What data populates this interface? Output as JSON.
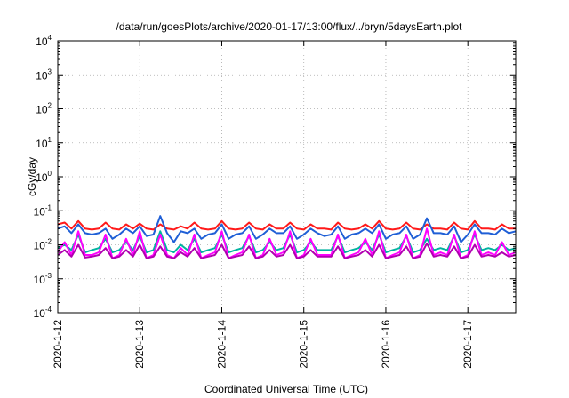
{
  "chart_data": {
    "type": "line",
    "title": "/data/run/goesPlots/archive/2020-01-17/13:00/flux/../bryn/5daysEarth.plot",
    "xlabel": "Coordinated Universal Time (UTC)",
    "ylabel": "cGy/day",
    "yscale": "log",
    "ylim": [
      0.0001,
      10000
    ],
    "y_ticks": [
      {
        "base": "10",
        "exp": "-4"
      },
      {
        "base": "10",
        "exp": "-3"
      },
      {
        "base": "10",
        "exp": "-2"
      },
      {
        "base": "10",
        "exp": "-1"
      },
      {
        "base": "10",
        "exp": "0"
      },
      {
        "base": "10",
        "exp": "1"
      },
      {
        "base": "10",
        "exp": "2"
      },
      {
        "base": "10",
        "exp": "3"
      },
      {
        "base": "10",
        "exp": "4"
      }
    ],
    "x_ticks": [
      "2020-1-12",
      "2020-1-13",
      "2020-1-14",
      "2020-1-15",
      "2020-1-16",
      "2020-1-17"
    ],
    "xlim": [
      "2020-01-12T00:00",
      "2020-01-17T14:00"
    ],
    "grid": true,
    "x_step_hours": 2,
    "series": [
      {
        "color": "#ff1a1a",
        "values": [
          0.04,
          0.045,
          0.03,
          0.05,
          0.03,
          0.028,
          0.03,
          0.045,
          0.03,
          0.028,
          0.04,
          0.03,
          0.042,
          0.03,
          0.028,
          0.04,
          0.03,
          0.028,
          0.035,
          0.03,
          0.045,
          0.03,
          0.028,
          0.03,
          0.05,
          0.03,
          0.028,
          0.03,
          0.045,
          0.03,
          0.028,
          0.04,
          0.03,
          0.03,
          0.045,
          0.03,
          0.028,
          0.04,
          0.03,
          0.03,
          0.028,
          0.045,
          0.03,
          0.028,
          0.03,
          0.04,
          0.03,
          0.05,
          0.03,
          0.028,
          0.03,
          0.045,
          0.03,
          0.028,
          0.04,
          0.03,
          0.03,
          0.028,
          0.045,
          0.03,
          0.028,
          0.05,
          0.03,
          0.03,
          0.028,
          0.04,
          0.03,
          0.03
        ]
      },
      {
        "color": "#1f5fd6",
        "values": [
          0.03,
          0.035,
          0.022,
          0.04,
          0.022,
          0.02,
          0.022,
          0.03,
          0.015,
          0.02,
          0.03,
          0.022,
          0.035,
          0.018,
          0.02,
          0.07,
          0.022,
          0.012,
          0.025,
          0.022,
          0.03,
          0.015,
          0.02,
          0.022,
          0.04,
          0.015,
          0.02,
          0.022,
          0.035,
          0.015,
          0.02,
          0.03,
          0.022,
          0.022,
          0.035,
          0.015,
          0.02,
          0.03,
          0.022,
          0.018,
          0.02,
          0.035,
          0.015,
          0.02,
          0.022,
          0.03,
          0.022,
          0.04,
          0.015,
          0.02,
          0.022,
          0.035,
          0.015,
          0.02,
          0.06,
          0.022,
          0.022,
          0.02,
          0.035,
          0.012,
          0.02,
          0.04,
          0.022,
          0.022,
          0.02,
          0.03,
          0.022,
          0.025
        ]
      },
      {
        "color": "#00b3a0",
        "values": [
          0.008,
          0.01,
          0.007,
          0.02,
          0.006,
          0.007,
          0.008,
          0.015,
          0.006,
          0.007,
          0.012,
          0.007,
          0.018,
          0.006,
          0.007,
          0.025,
          0.007,
          0.006,
          0.01,
          0.007,
          0.015,
          0.006,
          0.007,
          0.008,
          0.02,
          0.006,
          0.007,
          0.008,
          0.018,
          0.006,
          0.007,
          0.012,
          0.007,
          0.008,
          0.02,
          0.006,
          0.007,
          0.012,
          0.007,
          0.007,
          0.007,
          0.018,
          0.006,
          0.007,
          0.008,
          0.012,
          0.007,
          0.02,
          0.006,
          0.007,
          0.008,
          0.018,
          0.006,
          0.007,
          0.015,
          0.007,
          0.008,
          0.007,
          0.018,
          0.006,
          0.007,
          0.02,
          0.007,
          0.008,
          0.007,
          0.01,
          0.007,
          0.008
        ]
      },
      {
        "color": "#ff00ff",
        "values": [
          0.006,
          0.012,
          0.005,
          0.025,
          0.005,
          0.005,
          0.006,
          0.02,
          0.004,
          0.005,
          0.015,
          0.005,
          0.025,
          0.004,
          0.005,
          0.02,
          0.005,
          0.004,
          0.008,
          0.005,
          0.02,
          0.004,
          0.005,
          0.006,
          0.025,
          0.004,
          0.005,
          0.006,
          0.02,
          0.004,
          0.005,
          0.015,
          0.005,
          0.006,
          0.025,
          0.004,
          0.005,
          0.015,
          0.005,
          0.005,
          0.005,
          0.02,
          0.004,
          0.005,
          0.006,
          0.015,
          0.005,
          0.025,
          0.004,
          0.005,
          0.006,
          0.02,
          0.004,
          0.005,
          0.03,
          0.005,
          0.006,
          0.005,
          0.02,
          0.004,
          0.005,
          0.025,
          0.005,
          0.006,
          0.005,
          0.012,
          0.005,
          0.006
        ]
      },
      {
        "color": "#b000b0",
        "values": [
          0.005,
          0.007,
          0.0045,
          0.01,
          0.0042,
          0.0045,
          0.005,
          0.008,
          0.004,
          0.0045,
          0.007,
          0.0045,
          0.01,
          0.004,
          0.0045,
          0.009,
          0.0045,
          0.004,
          0.006,
          0.0045,
          0.008,
          0.004,
          0.0045,
          0.005,
          0.01,
          0.004,
          0.0045,
          0.005,
          0.009,
          0.004,
          0.0045,
          0.007,
          0.0045,
          0.005,
          0.01,
          0.004,
          0.0045,
          0.007,
          0.0045,
          0.0045,
          0.0045,
          0.009,
          0.004,
          0.0045,
          0.005,
          0.007,
          0.0045,
          0.01,
          0.004,
          0.0045,
          0.005,
          0.009,
          0.004,
          0.0045,
          0.011,
          0.0045,
          0.005,
          0.0045,
          0.009,
          0.004,
          0.0045,
          0.01,
          0.0045,
          0.005,
          0.0045,
          0.006,
          0.0045,
          0.005
        ]
      }
    ]
  }
}
